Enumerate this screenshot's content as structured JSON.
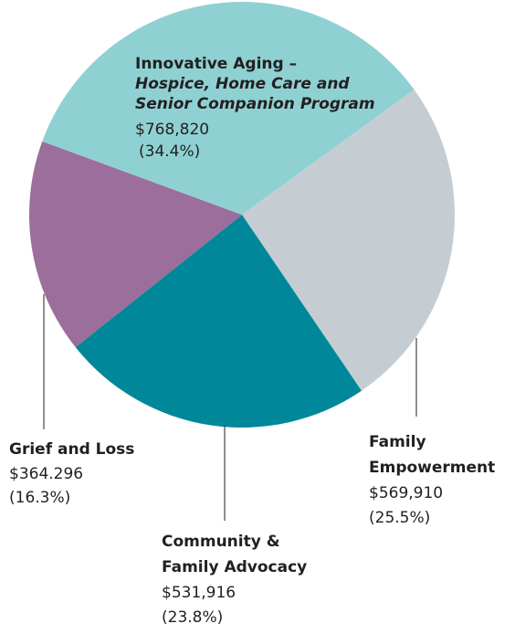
{
  "chart_data": {
    "type": "pie",
    "categories": [
      [
        "Family",
        "Empowerment"
      ],
      [
        "Community &",
        "Family Advocacy"
      ],
      [
        "Grief and Loss"
      ],
      [
        "Innovative Aging –"
      ]
    ],
    "note": [
      "Hospice, Home Care and",
      "Senior Companion Program"
    ],
    "amounts": [
      "$569,910",
      "$531,916",
      "$364.296",
      "$768,820"
    ],
    "values": [
      25.5,
      23.8,
      16.3,
      34.4
    ],
    "value_labels": [
      "(25.5%)",
      "(23.8%)",
      "(16.3%)",
      "(34.4%)"
    ],
    "colors": [
      "#c5cdd3",
      "#00889a",
      "#9b6e9b",
      "#8fd1d3"
    ]
  }
}
